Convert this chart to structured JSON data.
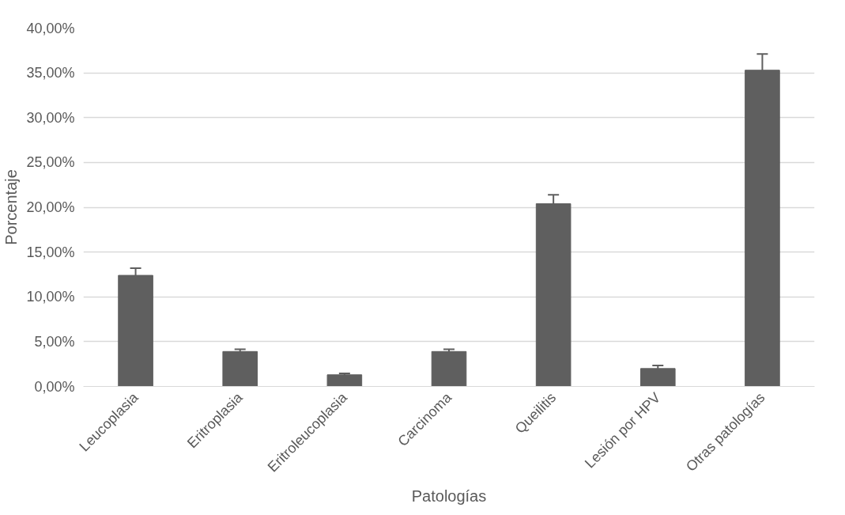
{
  "chart_data": {
    "type": "bar",
    "xlabel": "Patologías",
    "ylabel": "Porcentaje",
    "categories": [
      "Leucoplasia",
      "Eritroplasia",
      "Eritroleucoplasia",
      "Carcinoma",
      "Queilitis",
      "Lesión por HPV",
      "Otras patologías"
    ],
    "values": [
      12.4,
      3.9,
      1.3,
      3.9,
      20.4,
      2.0,
      35.3
    ],
    "errors": [
      0.8,
      0.25,
      0.15,
      0.25,
      1.0,
      0.35,
      1.8
    ],
    "color": "#5f5f5f",
    "ylim": [
      0,
      40
    ],
    "yticks": [
      {
        "value": 0,
        "label": "0,00%"
      },
      {
        "value": 5,
        "label": "5,00%"
      },
      {
        "value": 10,
        "label": "10,00%"
      },
      {
        "value": 15,
        "label": "15,00%"
      },
      {
        "value": 20,
        "label": "20,00%"
      },
      {
        "value": 25,
        "label": "25,00%"
      },
      {
        "value": 30,
        "label": "30,00%"
      },
      {
        "value": 35,
        "label": "35,00%"
      },
      {
        "value": 40,
        "label": "40,00%"
      }
    ],
    "grid": "y"
  }
}
